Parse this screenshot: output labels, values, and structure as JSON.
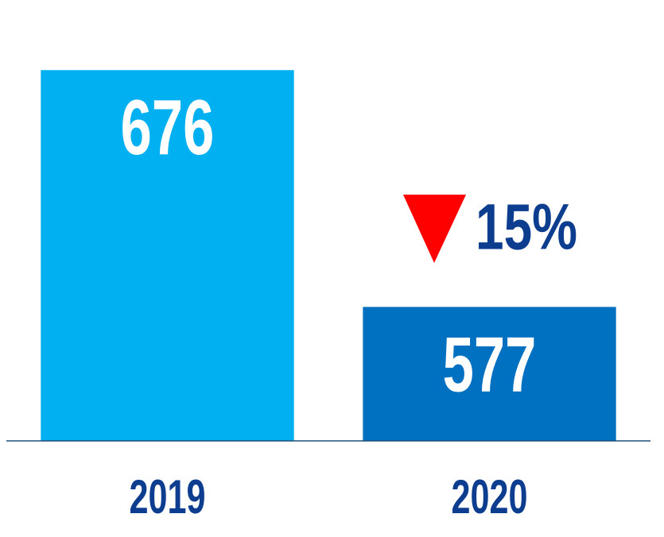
{
  "chart_data": {
    "type": "bar",
    "categories": [
      "2019",
      "2020"
    ],
    "values": [
      676,
      577
    ],
    "colors": [
      "#00b0f0",
      "#0070c0"
    ],
    "annotation": "15%",
    "ylim": [
      521,
      700
    ]
  }
}
